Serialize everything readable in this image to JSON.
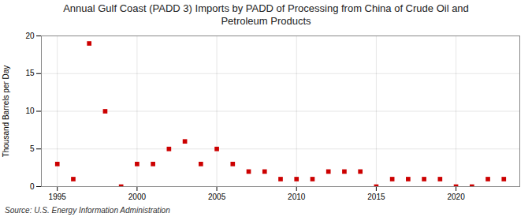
{
  "chart_data": {
    "type": "scatter",
    "title": "Annual Gulf Coast (PADD 3) Imports by PADD of Processing from China of Crude Oil and\nPetroleum Products",
    "ylabel": "Thousand Barrels per Day",
    "annotations": [
      "Source: U.S. Energy Information Administration"
    ],
    "x": [
      1995,
      1996,
      1997,
      1998,
      1999,
      2000,
      2001,
      2002,
      2003,
      2004,
      2005,
      2006,
      2007,
      2008,
      2009,
      2010,
      2011,
      2012,
      2013,
      2014,
      2015,
      2016,
      2017,
      2018,
      2019,
      2020,
      2021,
      2022,
      2023
    ],
    "values": [
      3,
      1,
      19,
      10,
      0,
      3,
      3,
      5,
      6,
      3,
      5,
      3,
      2,
      2,
      1,
      1,
      1,
      2,
      2,
      2,
      0,
      1,
      1,
      1,
      1,
      0,
      0,
      1,
      1
    ],
    "color": "#cc0000",
    "marker": "square",
    "xlim": [
      1994.0,
      2024.0
    ],
    "xticks": [
      1995,
      2000,
      2005,
      2010,
      2015,
      2020
    ],
    "ylim": [
      0,
      20
    ],
    "yticks": [
      0,
      5,
      10,
      15,
      20
    ],
    "grid": true
  }
}
